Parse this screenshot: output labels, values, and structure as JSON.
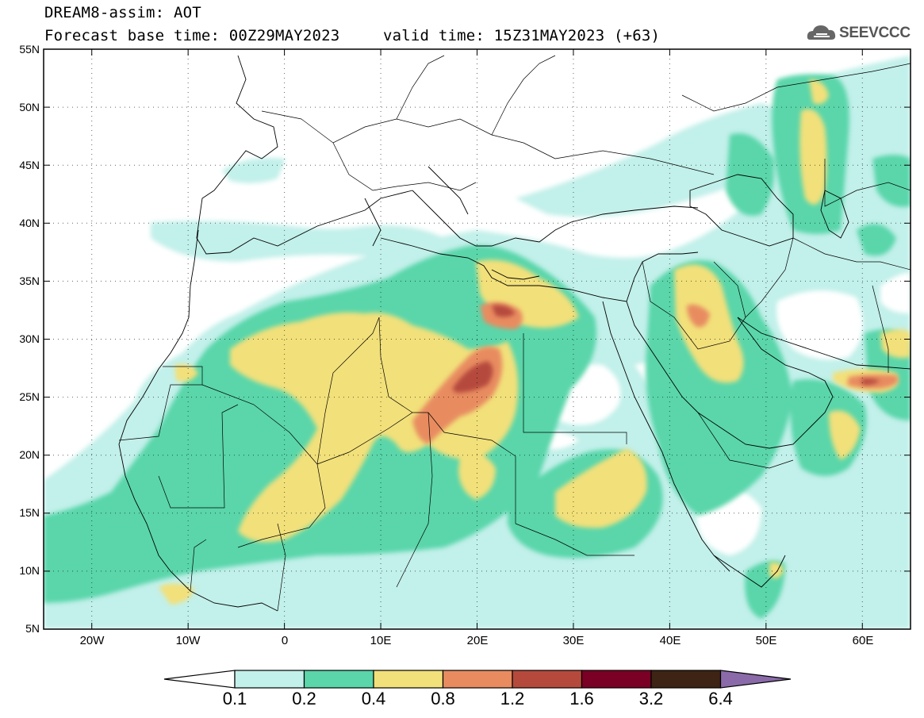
{
  "header": {
    "line1": "DREAM8-assim: AOT",
    "base_time": "Forecast base time: 00Z29MAY2023",
    "valid_time": "valid time: 15Z31MAY2023 (+63)"
  },
  "logo": {
    "text": "SEEVCCC",
    "icon": "cloud-icon"
  },
  "map": {
    "lat_labels": [
      "55N",
      "50N",
      "45N",
      "40N",
      "35N",
      "30N",
      "25N",
      "20N",
      "15N",
      "10N",
      "5N"
    ],
    "lon_labels": [
      "20W",
      "10W",
      "0",
      "10E",
      "20E",
      "30E",
      "40E",
      "50E",
      "60E"
    ],
    "lat_range": [
      5,
      55
    ],
    "lon_range": [
      -25,
      65
    ]
  },
  "colorbar": {
    "labels": [
      "0.1",
      "0.2",
      "0.4",
      "0.8",
      "1.2",
      "1.6",
      "3.2",
      "6.4"
    ],
    "colors": [
      "#ffffff",
      "#c2f0ea",
      "#5ad6aa",
      "#f2e07a",
      "#e88c60",
      "#b54a3c",
      "#7a0025",
      "#3e2414",
      "#8a6aa8"
    ]
  }
}
